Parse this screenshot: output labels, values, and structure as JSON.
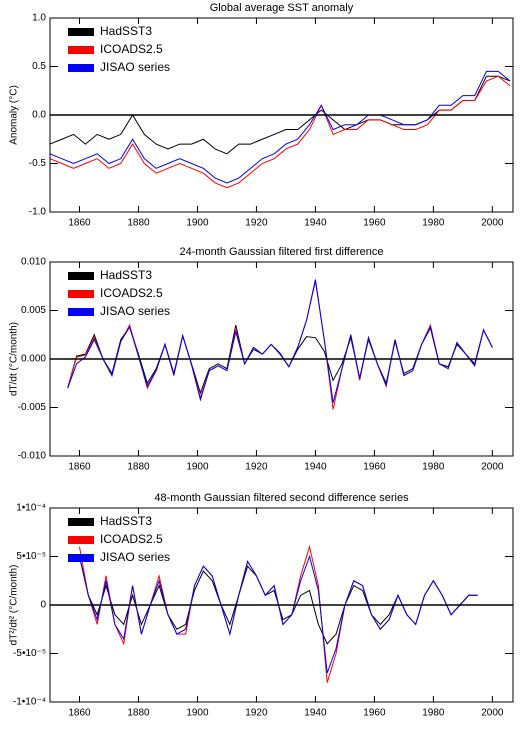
{
  "chart_data": [
    {
      "type": "line",
      "title": "Global average SST anomaly",
      "y_label": "Anomaly (°C)",
      "x": [
        1850,
        1854,
        1858,
        1862,
        1866,
        1870,
        1874,
        1878,
        1882,
        1886,
        1890,
        1894,
        1898,
        1902,
        1906,
        1910,
        1914,
        1918,
        1922,
        1926,
        1930,
        1934,
        1938,
        1942,
        1946,
        1950,
        1954,
        1958,
        1962,
        1966,
        1970,
        1974,
        1978,
        1982,
        1986,
        1990,
        1994,
        1998,
        2002,
        2006
      ],
      "series": [
        {
          "name": "HadSST3",
          "color": "#000000",
          "values": [
            -0.3,
            -0.25,
            -0.2,
            -0.3,
            -0.2,
            -0.25,
            -0.2,
            0.0,
            -0.2,
            -0.3,
            -0.35,
            -0.3,
            -0.3,
            -0.25,
            -0.35,
            -0.4,
            -0.3,
            -0.3,
            -0.25,
            -0.2,
            -0.15,
            -0.15,
            -0.05,
            0.05,
            -0.05,
            -0.15,
            -0.1,
            -0.05,
            -0.05,
            -0.1,
            -0.1,
            -0.1,
            -0.05,
            0.05,
            0.05,
            0.15,
            0.15,
            0.4,
            0.4,
            0.35
          ]
        },
        {
          "name": "ICOADS2.5",
          "color": "#ff0000",
          "values": [
            -0.45,
            -0.5,
            -0.55,
            -0.5,
            -0.45,
            -0.55,
            -0.5,
            -0.3,
            -0.5,
            -0.6,
            -0.55,
            -0.5,
            -0.55,
            -0.6,
            -0.7,
            -0.75,
            -0.7,
            -0.6,
            -0.5,
            -0.45,
            -0.35,
            -0.3,
            -0.15,
            0.1,
            -0.2,
            -0.15,
            -0.15,
            -0.05,
            -0.05,
            -0.1,
            -0.15,
            -0.15,
            -0.1,
            0.05,
            0.05,
            0.15,
            0.15,
            0.35,
            0.4,
            0.3
          ]
        },
        {
          "name": "JISAO series",
          "color": "#0000ff",
          "values": [
            -0.4,
            -0.45,
            -0.5,
            -0.45,
            -0.4,
            -0.5,
            -0.45,
            -0.25,
            -0.45,
            -0.55,
            -0.5,
            -0.45,
            -0.5,
            -0.55,
            -0.65,
            -0.7,
            -0.65,
            -0.55,
            -0.45,
            -0.4,
            -0.3,
            -0.25,
            -0.1,
            0.1,
            -0.15,
            -0.1,
            -0.1,
            0.0,
            0.0,
            -0.05,
            -0.1,
            -0.1,
            -0.05,
            0.1,
            0.1,
            0.2,
            0.2,
            0.45,
            0.45,
            0.35
          ]
        }
      ],
      "xlim": [
        1850,
        2007
      ],
      "xticks": [
        1860,
        1880,
        1900,
        1920,
        1940,
        1960,
        1980,
        2000
      ],
      "ylim": [
        -1,
        1
      ],
      "yticks": [
        {
          "value": -1,
          "label": "-1.0"
        },
        {
          "value": -0.5,
          "label": "-0.5"
        },
        {
          "value": 0,
          "label": "0.0"
        },
        {
          "value": 0.5,
          "label": "0.5"
        },
        {
          "value": 1,
          "label": "1.0"
        }
      ],
      "zero_line": true,
      "legend": "upper left"
    },
    {
      "type": "line",
      "title": "24-month Gaussian filtered first difference",
      "y_label": "dT/dt (°C/month)",
      "x": [
        1856,
        1859,
        1862,
        1865,
        1868,
        1871,
        1874,
        1877,
        1880,
        1883,
        1886,
        1889,
        1892,
        1895,
        1898,
        1901,
        1904,
        1907,
        1910,
        1913,
        1916,
        1919,
        1922,
        1925,
        1928,
        1931,
        1934,
        1937,
        1940,
        1943,
        1946,
        1949,
        1952,
        1955,
        1958,
        1961,
        1964,
        1967,
        1970,
        1973,
        1976,
        1979,
        1982,
        1985,
        1988,
        1991,
        1994,
        1997,
        2000
      ],
      "series": [
        {
          "name": "HadSST3",
          "color": "#000000",
          "values": [
            -0.003,
            0.0003,
            0.0005,
            0.0025,
            0.0,
            -0.0015,
            0.002,
            0.0033,
            0.0005,
            -0.0025,
            -0.001,
            0.0015,
            -0.0015,
            0.0024,
            -0.0005,
            -0.0035,
            -0.001,
            -0.0005,
            -0.001,
            0.0035,
            -0.0005,
            0.001,
            0.0005,
            0.0015,
            0.0005,
            -0.0008,
            0.001,
            0.0023,
            0.0022,
            0.0008,
            -0.0022,
            -0.0005,
            0.0022,
            -0.002,
            0.002,
            -0.0005,
            -0.0025,
            0.0018,
            -0.0015,
            -0.001,
            0.0015,
            0.0032,
            -0.0005,
            -0.0008,
            0.0015,
            0.0005,
            -0.0005,
            0.003,
            0.0012
          ]
        },
        {
          "name": "ICOADS2.5",
          "color": "#ff0000",
          "values": [
            -0.003,
            0.0002,
            0.0004,
            0.0022,
            0.0,
            -0.0017,
            0.0018,
            0.0035,
            0.0003,
            -0.003,
            -0.0012,
            0.0015,
            -0.0017,
            0.0024,
            -0.0006,
            -0.004,
            -0.0012,
            -0.0007,
            -0.0012,
            0.003,
            -0.0005,
            0.0012,
            0.0005,
            0.0015,
            0.0006,
            -0.0008,
            0.0012,
            0.004,
            0.008,
            0.002,
            -0.0052,
            -0.001,
            0.0025,
            -0.0022,
            0.0022,
            -0.0005,
            -0.0028,
            0.002,
            -0.0017,
            -0.0012,
            0.0015,
            0.0035,
            -0.0005,
            -0.001,
            0.0017,
            0.0005,
            -0.0007,
            0.003,
            0.0012
          ]
        },
        {
          "name": "JISAO series",
          "color": "#0000ff",
          "values": [
            -0.003,
            -0.0005,
            0.0002,
            0.002,
            0.0,
            -0.0017,
            0.0018,
            0.0033,
            0.0003,
            -0.0028,
            -0.0012,
            0.0015,
            -0.0016,
            0.0024,
            -0.0006,
            -0.0042,
            -0.0012,
            -0.0007,
            -0.0012,
            0.0028,
            -0.0005,
            0.0012,
            0.0005,
            0.0015,
            0.0006,
            -0.0008,
            0.0012,
            0.004,
            0.0082,
            0.002,
            -0.0045,
            -0.001,
            0.0025,
            -0.002,
            0.0022,
            -0.0005,
            -0.0027,
            0.002,
            -0.0017,
            -0.0012,
            0.0015,
            0.0033,
            -0.0005,
            -0.001,
            0.0017,
            0.0005,
            -0.0007,
            0.003,
            0.0012
          ]
        }
      ],
      "xlim": [
        1850,
        2007
      ],
      "xticks": [
        1860,
        1880,
        1900,
        1920,
        1940,
        1960,
        1980,
        2000
      ],
      "ylim": [
        -0.01,
        0.01
      ],
      "yticks": [
        {
          "value": -0.01,
          "label": "-0.010"
        },
        {
          "value": -0.005,
          "label": "-0.005"
        },
        {
          "value": 0,
          "label": "0.000"
        },
        {
          "value": 0.005,
          "label": "0.005"
        },
        {
          "value": 0.01,
          "label": "0.010"
        }
      ],
      "zero_line": true,
      "legend": "upper left"
    },
    {
      "type": "line",
      "title": "48-month Gaussian filtered second difference series",
      "y_label": "dT²/dt² (°C/month)",
      "x": [
        1860,
        1863,
        1866,
        1869,
        1872,
        1875,
        1878,
        1881,
        1884,
        1887,
        1890,
        1893,
        1896,
        1899,
        1902,
        1905,
        1908,
        1911,
        1914,
        1917,
        1920,
        1923,
        1926,
        1929,
        1932,
        1935,
        1938,
        1941,
        1944,
        1947,
        1950,
        1953,
        1956,
        1959,
        1962,
        1965,
        1968,
        1971,
        1974,
        1977,
        1980,
        1983,
        1986,
        1989,
        1992,
        1995
      ],
      "series": [
        {
          "name": "HadSST3",
          "color": "#000000",
          "values": [
            5e-05,
            1e-05,
            -1e-05,
            2e-05,
            -1e-05,
            -2e-05,
            1e-05,
            -2e-05,
            0,
            2e-05,
            -1e-05,
            -2.5e-05,
            -2e-05,
            1.5e-05,
            3.5e-05,
            2.5e-05,
            0,
            -2e-05,
            1e-05,
            4e-05,
            3e-05,
            1e-05,
            1.5e-05,
            -1.5e-05,
            -1e-05,
            1e-05,
            1.5e-05,
            -2e-05,
            -4e-05,
            -3e-05,
            0,
            2e-05,
            1.5e-05,
            -1e-05,
            -2e-05,
            -1e-05,
            1e-05,
            -1e-05,
            -2e-05,
            1e-05,
            2.5e-05,
            1e-05,
            -1e-05,
            0,
            1e-05,
            1e-05
          ]
        },
        {
          "name": "ICOADS2.5",
          "color": "#ff0000",
          "values": [
            6e-05,
            1e-05,
            -2e-05,
            3e-05,
            -2e-05,
            -4e-05,
            2e-05,
            -3e-05,
            0,
            3e-05,
            -1e-05,
            -3e-05,
            -3e-05,
            2e-05,
            4e-05,
            3e-05,
            0,
            -3e-05,
            1e-05,
            4.5e-05,
            3e-05,
            1e-05,
            2e-05,
            -2e-05,
            -1e-05,
            3e-05,
            6e-05,
            2e-05,
            -8e-05,
            -5e-05,
            0,
            2.5e-05,
            2e-05,
            -1e-05,
            -2.5e-05,
            -1.5e-05,
            1e-05,
            -1e-05,
            -2e-05,
            1e-05,
            2.5e-05,
            1e-05,
            -1e-05,
            0,
            1e-05,
            1e-05
          ]
        },
        {
          "name": "JISAO series",
          "color": "#0000ff",
          "values": [
            5e-05,
            1e-05,
            -1.5e-05,
            2.5e-05,
            -2e-05,
            -3.5e-05,
            2e-05,
            -3e-05,
            0,
            2.5e-05,
            -1e-05,
            -3e-05,
            -2.5e-05,
            2e-05,
            4e-05,
            3e-05,
            0,
            -3e-05,
            1e-05,
            4.5e-05,
            3e-05,
            1e-05,
            2e-05,
            -2e-05,
            -1e-05,
            2.5e-05,
            5e-05,
            1.5e-05,
            -7e-05,
            -4.5e-05,
            0,
            2.5e-05,
            2e-05,
            -1e-05,
            -2.5e-05,
            -1.5e-05,
            1e-05,
            -1e-05,
            -2e-05,
            1e-05,
            2.5e-05,
            1e-05,
            -1e-05,
            0,
            1e-05,
            1e-05
          ]
        }
      ],
      "xlim": [
        1850,
        2007
      ],
      "xticks": [
        1860,
        1880,
        1900,
        1920,
        1940,
        1960,
        1980,
        2000
      ],
      "ylim": [
        -0.0001,
        0.0001
      ],
      "yticks": [
        {
          "value": -0.0001,
          "label": "-1•10⁻⁴"
        },
        {
          "value": -5e-05,
          "label": "-5•10⁻⁵"
        },
        0,
        {
          "value": 5e-05,
          "label": "5•10⁻⁵"
        },
        {
          "value": 0.0001,
          "label": "1•10⁻⁴"
        }
      ],
      "zero_line": true,
      "legend": "upper left"
    }
  ]
}
